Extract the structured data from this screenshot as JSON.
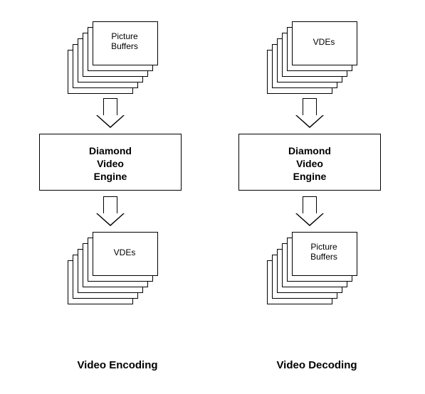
{
  "diagram": {
    "type": "flowchart",
    "background_color": "#ffffff",
    "stroke_color": "#000000",
    "columns": [
      {
        "id": "encoding",
        "caption": "Video Encoding",
        "top_stack_label": "Picture\nBuffers",
        "engine_label": "Diamond\nVideo\nEngine",
        "bottom_stack_label": "VDEs"
      },
      {
        "id": "decoding",
        "caption": "Video Decoding",
        "top_stack_label": "VDEs",
        "engine_label": "Diamond\nVideo\nEngine",
        "bottom_stack_label": "Picture\nBuffers"
      }
    ],
    "stack_sheet_count": 6,
    "fonts": {
      "label_size_pt": 12,
      "engine_size_pt": 14,
      "caption_size_pt": 15,
      "engine_weight": "bold",
      "caption_weight": "bold"
    }
  }
}
